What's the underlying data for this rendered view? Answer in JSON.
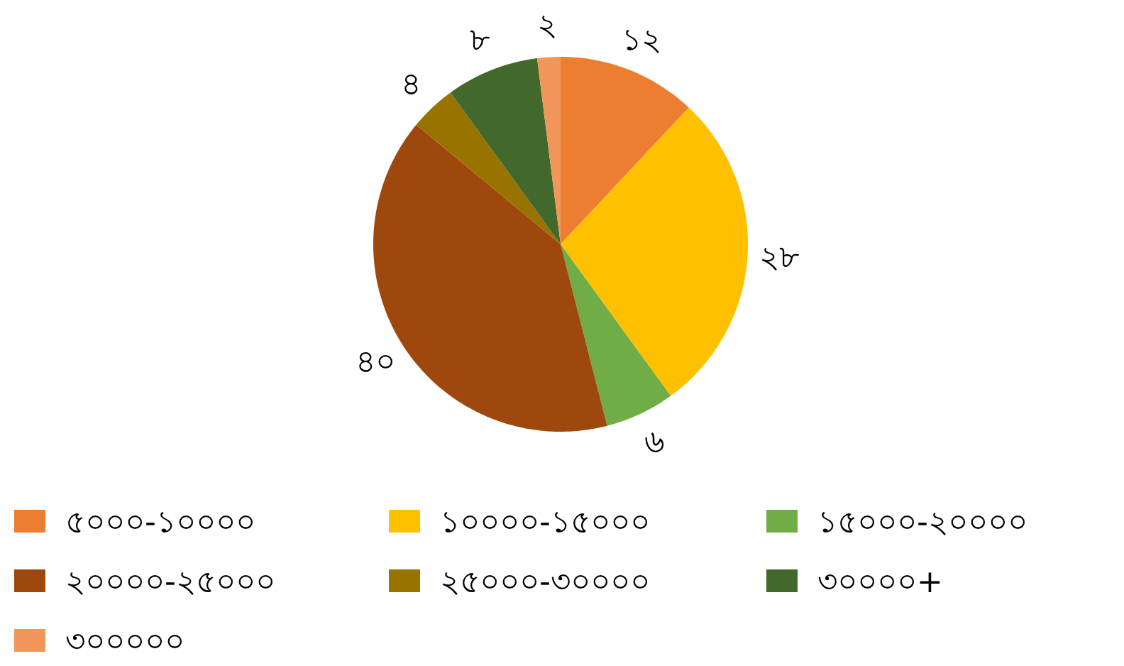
{
  "chart_data": {
    "type": "pie",
    "categories": [
      "৫০০০-১০০০০",
      "১০০০০-১৫০০০",
      "১৫০০০-২০০০০",
      "২০০০০-২৫০০০",
      "২৫০০০-৩০০০০",
      "৩০০০০+",
      "৩০০০০০"
    ],
    "values": [
      12,
      28,
      6,
      40,
      4,
      8,
      2
    ],
    "value_labels": [
      "১২",
      "২৮",
      "৬",
      "৪০",
      "৪",
      "৮",
      "২"
    ],
    "colors": [
      "#ed7d31",
      "#ffc000",
      "#70ad47",
      "#9e480e",
      "#997300",
      "#43682b",
      "#f1975a"
    ],
    "legend": "bottom"
  }
}
